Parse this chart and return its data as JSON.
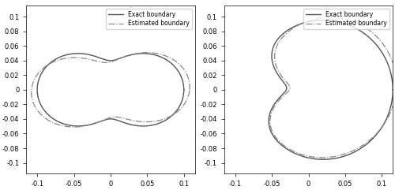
{
  "xlim": [
    -0.115,
    0.115
  ],
  "ylim": [
    -0.115,
    0.115
  ],
  "xticks": [
    -0.1,
    -0.05,
    0,
    0.05,
    0.1
  ],
  "yticks": [
    -0.1,
    -0.08,
    -0.06,
    -0.04,
    -0.02,
    0,
    0.02,
    0.04,
    0.06,
    0.08,
    0.1
  ],
  "exact_color": "#555555",
  "estimated_color": "#888888",
  "exact_lw": 1.0,
  "estimated_lw": 0.9,
  "legend_labels": [
    "Exact boundary",
    "Estimated boundary"
  ],
  "figsize": [
    5.0,
    2.41
  ],
  "dpi": 100,
  "tick_fontsize": 6,
  "legend_fontsize": 5.5
}
